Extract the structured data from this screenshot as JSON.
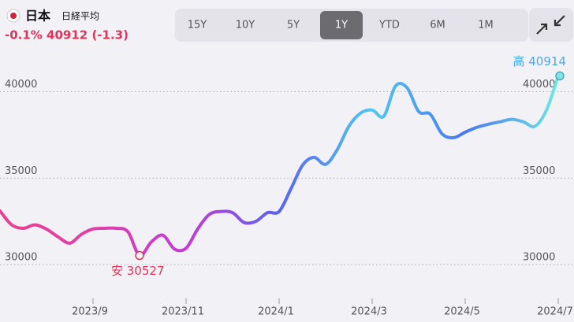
{
  "header": {
    "flag_country": "日本",
    "index_name": "日経平均",
    "quote": "-0.1% 40912 (-1.3)"
  },
  "ranges": [
    {
      "label": "15Y",
      "active": false
    },
    {
      "label": "10Y",
      "active": false
    },
    {
      "label": "5Y",
      "active": false
    },
    {
      "label": "1Y",
      "active": true
    },
    {
      "label": "YTD",
      "active": false
    },
    {
      "label": "6M",
      "active": false
    },
    {
      "label": "1M",
      "active": false
    }
  ],
  "chart_data": {
    "type": "line",
    "categories": [
      null,
      null,
      null,
      null,
      null,
      null,
      null,
      null,
      "2023/9",
      null,
      null,
      null,
      null,
      null,
      null,
      null,
      "2023/11",
      null,
      null,
      null,
      null,
      null,
      null,
      null,
      "2024/1",
      null,
      null,
      null,
      null,
      null,
      null,
      null,
      "2024/3",
      null,
      null,
      null,
      null,
      null,
      null,
      null,
      "2024/5",
      null,
      null,
      null,
      null,
      null,
      null,
      null,
      "2024/7"
    ],
    "series": [
      {
        "name": "日経平均",
        "colors": [
          "#e83f8f",
          "#e040a8",
          "#c33bd5",
          "#5a62f0",
          "#50c8f0",
          "#4a78f0",
          "#6ee8e0"
        ],
        "values": [
          33100,
          32300,
          32100,
          32300,
          32050,
          31600,
          31240,
          31750,
          32060,
          32100,
          32100,
          31900,
          30527,
          31300,
          31700,
          30900,
          30950,
          32060,
          32900,
          33070,
          33000,
          32430,
          32500,
          33000,
          33070,
          34360,
          35730,
          36200,
          35800,
          36650,
          38000,
          38760,
          38940,
          38580,
          40320,
          40230,
          38850,
          38700,
          37570,
          37340,
          37660,
          37940,
          38120,
          38260,
          38400,
          38260,
          38000,
          38950,
          40914
        ]
      }
    ],
    "annotations": {
      "high": "高 40914",
      "low": "安 30527"
    },
    "ylim": [
      28000,
      42800
    ],
    "yticks": [
      30000,
      35000,
      40000
    ],
    "grid": true
  }
}
